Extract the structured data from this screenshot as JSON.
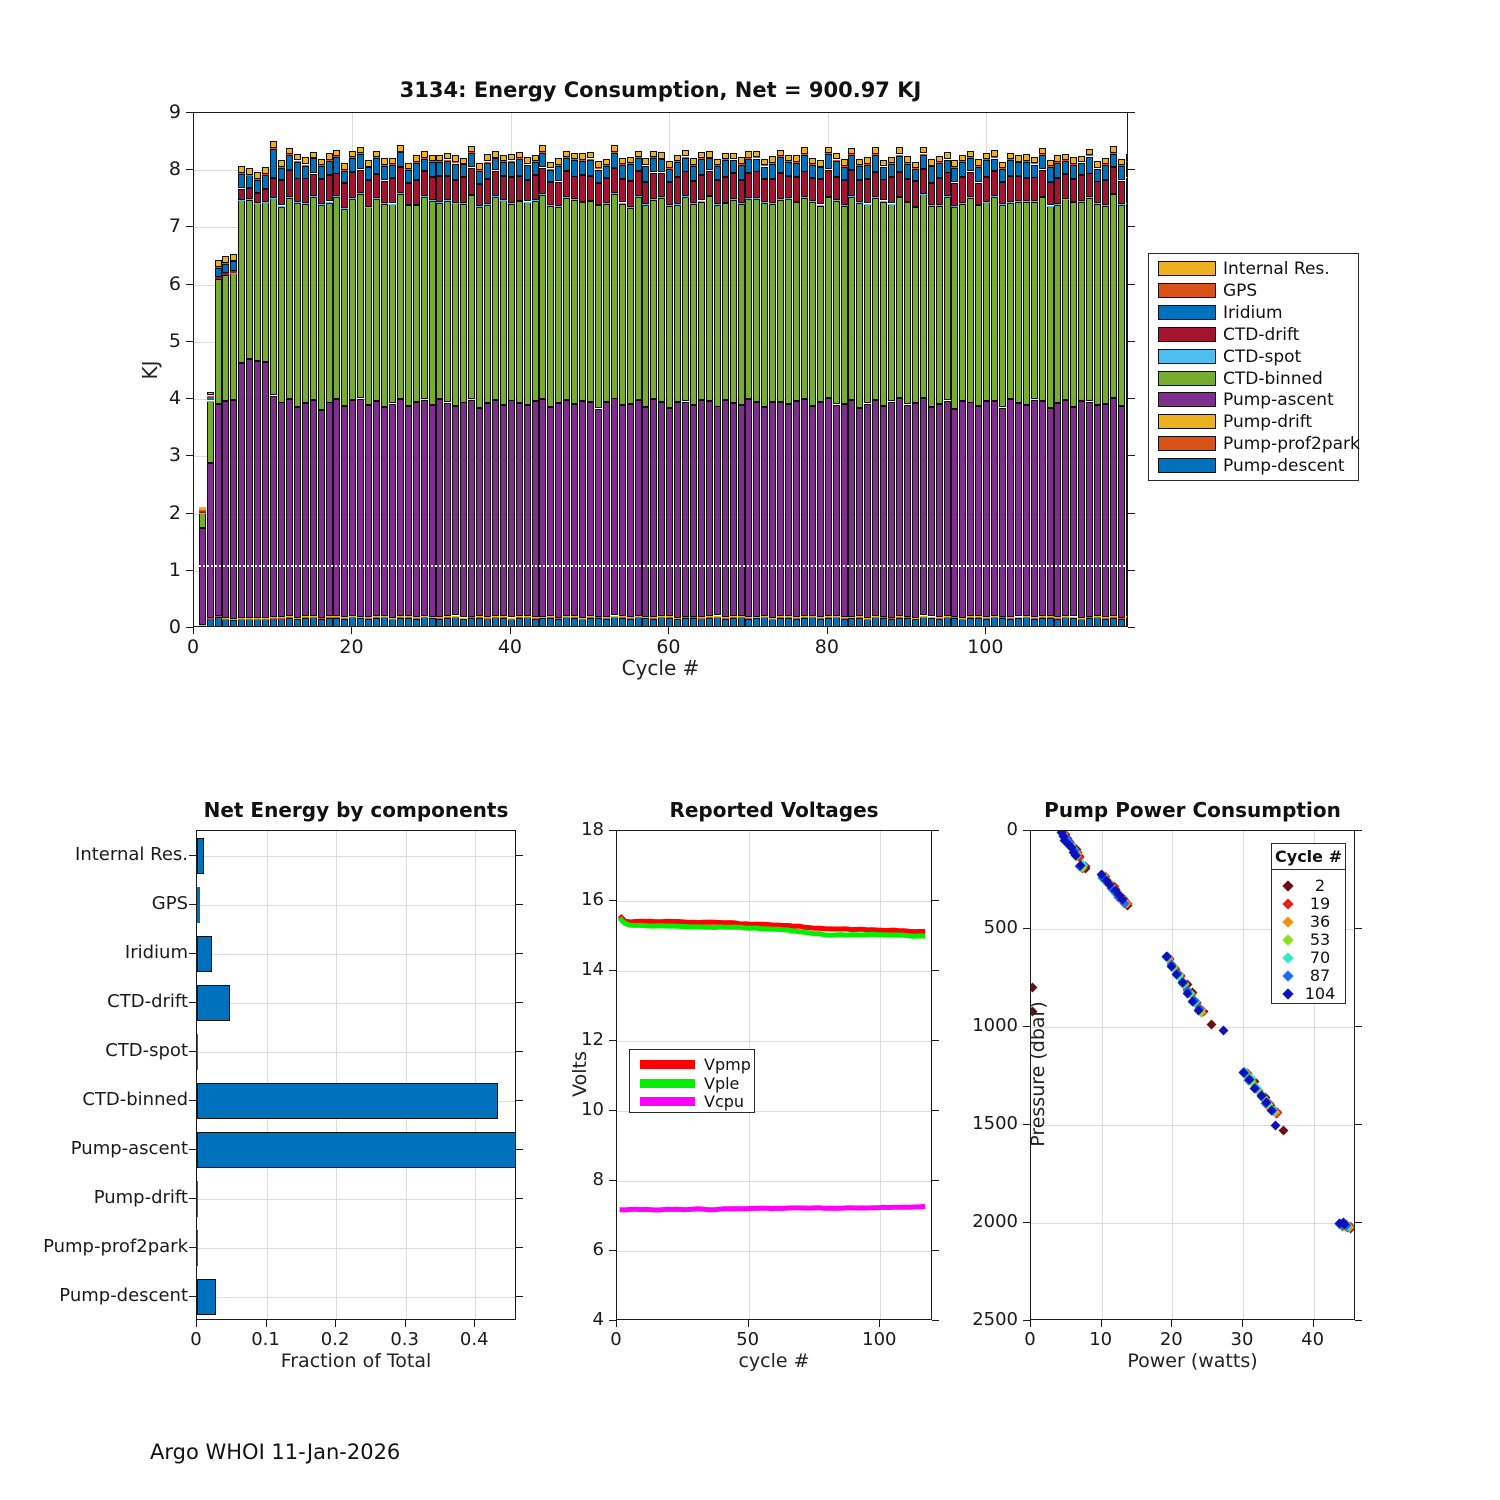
{
  "footer": {
    "text": "Argo WHOI 11-Jan-2026"
  },
  "chart_data": [
    {
      "id": "energy",
      "type": "bar",
      "title": "3134: Energy Consumption,  Net = 900.97 KJ",
      "xlabel": "Cycle #",
      "ylabel": "KJ",
      "xlim": [
        0,
        118.5
      ],
      "ylim": [
        0,
        9
      ],
      "xticks": [
        0,
        20,
        40,
        60,
        80,
        100
      ],
      "yticks": [
        0,
        1,
        2,
        3,
        4,
        5,
        6,
        7,
        8,
        9
      ],
      "n_cycles": 118,
      "grid": true,
      "dotted_line": {
        "y": 1.1,
        "color": "#ffffff"
      },
      "components": [
        {
          "name": "Pump-descent",
          "color": "#0072BD"
        },
        {
          "name": "Pump-prof2park",
          "color": "#D95319"
        },
        {
          "name": "Pump-drift",
          "color": "#EDB120"
        },
        {
          "name": "Pump-ascent",
          "color": "#7E2F8E"
        },
        {
          "name": "CTD-binned",
          "color": "#77AC30"
        },
        {
          "name": "CTD-spot",
          "color": "#4DBEEE"
        },
        {
          "name": "CTD-drift",
          "color": "#A2142F"
        },
        {
          "name": "Iridium",
          "color": "#0072BD"
        },
        {
          "name": "GPS",
          "color": "#D95319"
        },
        {
          "name": "Internal Res.",
          "color": "#EDB120"
        }
      ],
      "early_cycles": [
        [
          0.04,
          0.008,
          0.004,
          1.7,
          0.26,
          0.004,
          0.01,
          0.02,
          0.012,
          0.05
        ],
        [
          0.17,
          0.01,
          0.008,
          2.7,
          1.08,
          0.006,
          0.02,
          0.05,
          0.012,
          0.06
        ],
        [
          0.2,
          0.01,
          0.01,
          3.7,
          2.18,
          0.008,
          0.03,
          0.15,
          0.015,
          0.13
        ],
        [
          0.15,
          0.01,
          0.01,
          3.8,
          2.2,
          0.008,
          0.03,
          0.16,
          0.015,
          0.12
        ],
        [
          0.14,
          0.01,
          0.01,
          3.82,
          2.22,
          0.008,
          0.03,
          0.17,
          0.015,
          0.12
        ],
        [
          0.15,
          0.01,
          0.012,
          4.46,
          2.84,
          0.008,
          0.2,
          0.25,
          0.015,
          0.13
        ],
        [
          0.15,
          0.01,
          0.012,
          4.53,
          2.78,
          0.008,
          0.2,
          0.22,
          0.015,
          0.12
        ],
        [
          0.15,
          0.01,
          0.012,
          4.49,
          2.76,
          0.008,
          0.18,
          0.22,
          0.015,
          0.12
        ],
        [
          0.15,
          0.01,
          0.012,
          4.48,
          2.79,
          0.008,
          0.22,
          0.25,
          0.015,
          0.12
        ],
        [
          0.17,
          0.012,
          0.015,
          3.86,
          3.45,
          0.01,
          0.35,
          0.5,
          0.02,
          0.12
        ]
      ],
      "base": [
        0.17,
        0.012,
        0.015,
        3.72,
        3.5,
        0.015,
        0.42,
        0.2,
        0.02,
        0.095
      ],
      "noise_scales": {
        "0": 0.02,
        "3": 0.1,
        "4": 0.09,
        "6": 0.05
      },
      "abs_noise_scales": {
        "7": 0.1,
        "9": 0.035
      },
      "noise_phase": {
        "0": 11,
        "3": 0,
        "4": 5,
        "6": 9,
        "7": 3,
        "9": 7
      },
      "noise": [
        0.2,
        -0.5,
        0.7,
        0.1,
        -0.8,
        0.4,
        0.9,
        -0.2,
        0.5,
        -0.6,
        0.3,
        0.8,
        -0.4,
        0.1,
        0.6,
        -0.9,
        0.2,
        0.7,
        -0.3,
        0.5,
        0.9,
        -0.1,
        0.4,
        -0.7,
        0.2,
        0.8,
        -0.5,
        0.3,
        0.6,
        -0.2,
        0.9,
        0.1,
        -0.6,
        0.4,
        0.7,
        -0.8,
        0.2,
        0.5,
        -0.3,
        0.8,
        0.1,
        -0.4,
        0.6,
        0.9,
        -0.7,
        0.3,
        0.5,
        -0.1,
        0.7,
        0.2,
        -0.9,
        0.4,
        0.8,
        -0.3,
        0.1,
        0.6,
        -0.5,
        0.9,
        0.2,
        -0.8,
        0.5,
        0.3,
        -0.2,
        0.7,
        0.4,
        -0.6,
        0.8,
        0.1,
        -0.4,
        0.9,
        0.3,
        -0.7,
        0.5,
        0.2,
        -0.1,
        0.6,
        0.8,
        -0.5,
        0.4,
        0.9,
        -0.3,
        0.1,
        0.7,
        -0.8,
        0.2,
        0.6,
        -0.4,
        0.5,
        0.9,
        -0.2,
        0.3,
        0.8,
        -0.6,
        0.1,
        0.4,
        -0.9,
        0.7,
        0.2,
        -0.5,
        0.6,
        0.3,
        -0.7,
        0.9,
        0.1,
        -0.3,
        0.8,
        0.4,
        -0.8,
        0.2,
        0.5,
        -0.6,
        0.7,
        0.3,
        -0.4,
        0.1,
        0.9,
        -0.2,
        0.6
      ]
    },
    {
      "id": "net",
      "type": "barh",
      "title": "Net Energy by components",
      "xlabel": "Fraction of Total",
      "categories": [
        "Internal Res.",
        "GPS",
        "Iridium",
        "CTD-drift",
        "CTD-spot",
        "CTD-binned",
        "Pump-ascent",
        "Pump-drift",
        "Pump-prof2park",
        "Pump-descent"
      ],
      "values": [
        0.01,
        0.004,
        0.022,
        0.048,
        0.0015,
        0.432,
        0.458,
        0.0012,
        0.0015,
        0.027
      ],
      "xticks": [
        0,
        0.1,
        0.2,
        0.3,
        0.4
      ],
      "xtick_labels": [
        "0",
        "0.1",
        "0.2",
        "0.3",
        "0.4"
      ],
      "xlim": [
        0,
        0.46
      ],
      "bar_color": "#0072BD",
      "grid": true
    },
    {
      "id": "volt",
      "type": "line",
      "title": "Reported Voltages",
      "xlabel": "cycle #",
      "ylabel": "Volts",
      "xlim": [
        0,
        120
      ],
      "ylim": [
        4,
        18
      ],
      "xticks": [
        0,
        50,
        100
      ],
      "yticks": [
        4,
        6,
        8,
        10,
        12,
        14,
        16,
        18
      ],
      "grid": true,
      "series": [
        {
          "name": "Vpmp",
          "color": "#FF0000",
          "x": [
            1,
            2,
            3,
            5,
            10,
            15,
            20,
            25,
            30,
            35,
            40,
            45,
            50,
            55,
            60,
            65,
            70,
            75,
            80,
            85,
            90,
            95,
            100,
            105,
            110,
            114,
            118
          ],
          "y": [
            15.58,
            15.48,
            15.44,
            15.42,
            15.41,
            15.4,
            15.4,
            15.39,
            15.38,
            15.38,
            15.37,
            15.36,
            15.35,
            15.34,
            15.33,
            15.31,
            15.28,
            15.24,
            15.21,
            15.19,
            15.18,
            15.17,
            15.16,
            15.15,
            15.13,
            15.12,
            15.11
          ]
        },
        {
          "name": "Vple",
          "color": "#00F000",
          "x": [
            1,
            2,
            3,
            5,
            10,
            15,
            20,
            25,
            30,
            35,
            40,
            45,
            50,
            55,
            60,
            65,
            70,
            75,
            80,
            85,
            90,
            95,
            100,
            105,
            110,
            114,
            118
          ],
          "y": [
            15.5,
            15.38,
            15.34,
            15.32,
            15.31,
            15.3,
            15.29,
            15.28,
            15.27,
            15.26,
            15.25,
            15.24,
            15.22,
            15.2,
            15.18,
            15.15,
            15.11,
            15.06,
            15.03,
            15.02,
            15.02,
            15.03,
            15.03,
            15.02,
            15.0,
            14.99,
            14.98
          ]
        },
        {
          "name": "Vcpu",
          "color": "#FF00FF",
          "x": [
            1,
            2,
            3,
            5,
            10,
            15,
            20,
            25,
            30,
            35,
            40,
            45,
            50,
            55,
            60,
            65,
            70,
            75,
            80,
            85,
            90,
            95,
            100,
            105,
            110,
            114,
            118
          ],
          "y": [
            7.17,
            7.16,
            7.17,
            7.18,
            7.18,
            7.17,
            7.18,
            7.18,
            7.19,
            7.19,
            7.2,
            7.2,
            7.2,
            7.21,
            7.21,
            7.22,
            7.22,
            7.22,
            7.23,
            7.23,
            7.24,
            7.24,
            7.25,
            7.26,
            7.26,
            7.26,
            7.27
          ]
        }
      ]
    },
    {
      "id": "pump",
      "type": "scatter",
      "title": "Pump Power Consumption",
      "xlabel": "Power (watts)",
      "ylabel": "Pressure (dbar)",
      "xlim": [
        0,
        46
      ],
      "ylim": [
        0,
        2500
      ],
      "y_reversed": true,
      "xticks": [
        0,
        10,
        20,
        30,
        40
      ],
      "yticks": [
        0,
        500,
        1000,
        1500,
        2000,
        2500
      ],
      "grid": true,
      "legend_title": "Cycle #",
      "streaks": [
        {
          "x0": 4.3,
          "p0": 10,
          "x1": 6.2,
          "p1": 110,
          "n": 6
        },
        {
          "x0": 6.4,
          "p0": 125,
          "x1": 7.1,
          "p1": 178,
          "n": 2
        },
        {
          "x0": 10.1,
          "p0": 235,
          "x1": 13.2,
          "p1": 365,
          "n": 6
        },
        {
          "x0": 19.2,
          "p0": 645,
          "x1": 23.8,
          "p1": 915,
          "n": 7
        },
        {
          "x0": 30.2,
          "p0": 1235,
          "x1": 34.2,
          "p1": 1430,
          "n": 6
        },
        {
          "x0": 43.7,
          "p0": 2008,
          "x1": 44.7,
          "p1": 2014,
          "n": 3
        }
      ],
      "cycles": [
        {
          "label": "2",
          "color": "#6B0F14",
          "dx": 0.5,
          "dp": 8,
          "extras": [
            [
              0.2,
              800
            ],
            [
              0.2,
              920
            ],
            [
              7.7,
              192
            ],
            [
              25.6,
              985
            ],
            [
              35.7,
              1530
            ]
          ]
        },
        {
          "label": "19",
          "color": "#E6221E",
          "dx": 0.35,
          "dp": 5,
          "extras": [
            [
              34.9,
              1437
            ]
          ]
        },
        {
          "label": "36",
          "color": "#F59211",
          "dx": 0.22,
          "dp": 3,
          "extras": [
            [
              24.2,
              928
            ]
          ]
        },
        {
          "label": "53",
          "color": "#84E514",
          "dx": 0.12,
          "dp": 0,
          "extras": []
        },
        {
          "label": "70",
          "color": "#2BE8C8",
          "dx": 0.05,
          "dp": -2,
          "extras": []
        },
        {
          "label": "87",
          "color": "#1E6CF0",
          "dx": -0.05,
          "dp": -4,
          "extras": [
            [
              30.1,
              1232
            ]
          ]
        },
        {
          "label": "104",
          "color": "#0D11BB",
          "dx": -0.15,
          "dp": -6,
          "extras": [
            [
              27.3,
              1020
            ],
            [
              34.6,
              1500
            ]
          ]
        }
      ]
    }
  ]
}
